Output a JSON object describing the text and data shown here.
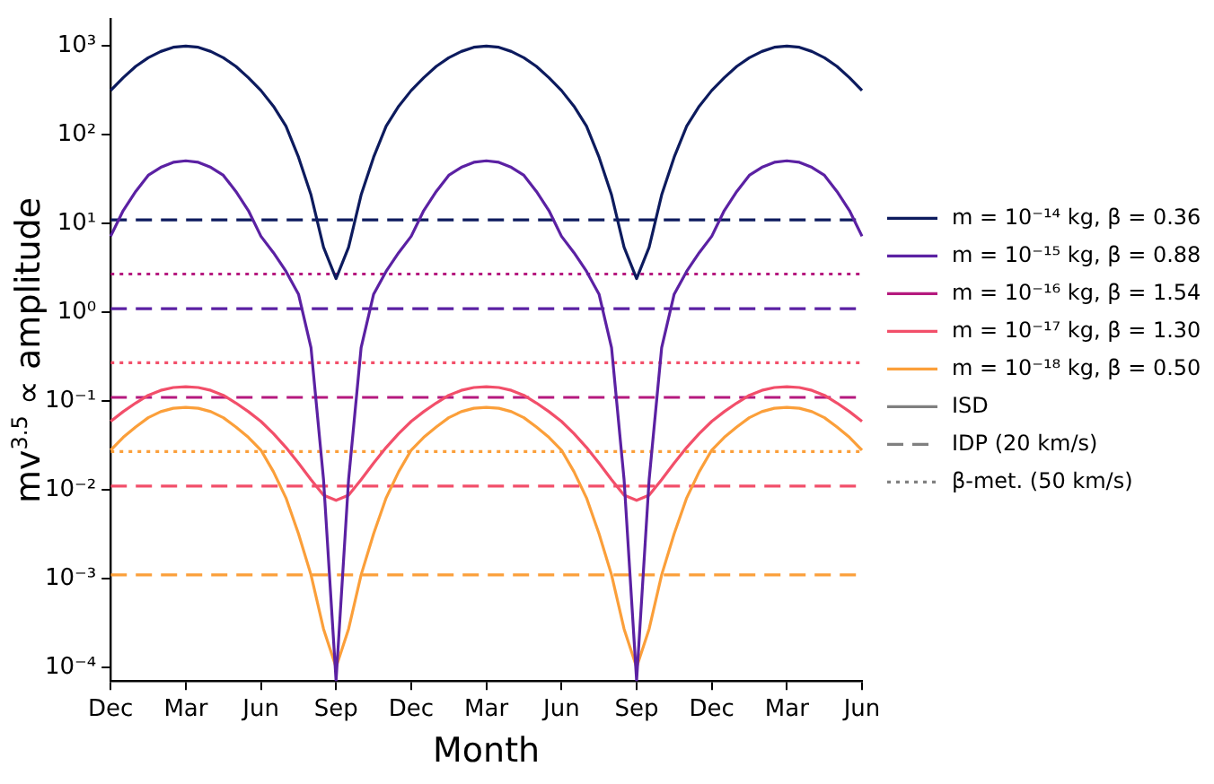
{
  "chart_data": {
    "type": "line",
    "xlabel": "Month",
    "ylabel": "mv$^{3.5}$ ∝ amplitude",
    "categories": [
      "Dec",
      null,
      null,
      null,
      null,
      null,
      "Mar",
      null,
      null,
      null,
      null,
      null,
      "Jun",
      null,
      null,
      null,
      null,
      null,
      "Sep",
      null,
      null,
      null,
      null,
      null,
      "Dec",
      null,
      null,
      null,
      null,
      null,
      "Mar",
      null,
      null,
      null,
      null,
      null,
      "Jun",
      null,
      null,
      null,
      null,
      null,
      "Sep",
      null,
      null,
      null,
      null,
      null,
      "Dec",
      null,
      null,
      null,
      null,
      null,
      "Mar",
      null,
      null,
      null,
      null,
      null,
      "Jun"
    ],
    "log": true,
    "ylim": [
      7e-05,
      2000
    ],
    "yticks": [
      {
        "value": 0.0001,
        "label": "10⁻⁴"
      },
      {
        "value": 0.001,
        "label": "10⁻³"
      },
      {
        "value": 0.01,
        "label": "10⁻²"
      },
      {
        "value": 0.1,
        "label": "10⁻¹"
      },
      {
        "value": 1,
        "label": "10⁰"
      },
      {
        "value": 10,
        "label": "10¹"
      },
      {
        "value": 100,
        "label": "10²"
      },
      {
        "value": 1000,
        "label": "10³"
      }
    ],
    "marker": "none",
    "legend": "right",
    "series": [
      {
        "name": "m = 10⁻¹⁴ kg, β = 0.36",
        "color": "#0d1b5e",
        "line_style": "solid",
        "values": [
          316,
          440,
          590,
          740,
          870,
          970,
          1000,
          970,
          870,
          740,
          590,
          440,
          316,
          210,
          125,
          56,
          21,
          5.4,
          2.4,
          5.4,
          21,
          56,
          125,
          210,
          316,
          440,
          590,
          740,
          870,
          970,
          1000,
          970,
          870,
          740,
          590,
          440,
          316,
          210,
          125,
          56,
          21,
          5.4,
          2.4,
          5.4,
          21,
          56,
          125,
          210,
          316,
          440,
          590,
          740,
          870,
          970,
          1000,
          970,
          870,
          740,
          590,
          440,
          316
        ]
      },
      {
        "name": "m = 10⁻¹⁵ kg, β = 0.88",
        "color": "#5b21a3",
        "line_style": "solid",
        "values": [
          7.2,
          14,
          23,
          35,
          43,
          49,
          51,
          49,
          43,
          35,
          23,
          14,
          7.2,
          4.7,
          2.9,
          1.6,
          0.4,
          0.013,
          7.1e-05,
          0.013,
          0.4,
          1.6,
          2.9,
          4.7,
          7.2,
          14,
          23,
          35,
          43,
          49,
          51,
          49,
          43,
          35,
          23,
          14,
          7.2,
          4.7,
          2.9,
          1.6,
          0.4,
          0.013,
          7.1e-05,
          0.013,
          0.4,
          1.6,
          2.9,
          4.7,
          7.2,
          14,
          23,
          35,
          43,
          49,
          51,
          49,
          43,
          35,
          23,
          14,
          7.2
        ]
      },
      {
        "name": "m = 10⁻¹⁶ kg, β = 1.54",
        "color": "#b5197e",
        "line_style": "solid",
        "values": [
          null,
          null,
          null,
          null,
          null,
          null,
          null,
          null,
          null,
          null,
          null,
          null,
          null,
          null,
          null,
          null,
          null,
          null,
          null,
          null,
          null,
          null,
          null,
          null,
          null,
          null,
          null,
          null,
          null,
          null,
          null,
          null,
          null,
          null,
          null,
          null,
          null,
          null,
          null,
          null,
          null,
          null,
          null,
          null,
          null,
          null,
          null,
          null,
          null,
          null,
          null,
          null,
          null,
          null,
          null,
          null,
          null,
          null,
          null,
          null,
          null
        ]
      },
      {
        "name": "m = 10⁻¹⁷ kg, β = 1.30",
        "color": "#f24f6a",
        "line_style": "solid",
        "values": [
          0.059,
          0.076,
          0.095,
          0.116,
          0.132,
          0.142,
          0.145,
          0.142,
          0.132,
          0.116,
          0.095,
          0.076,
          0.059,
          0.043,
          0.03,
          0.02,
          0.013,
          0.0087,
          0.0076,
          0.0087,
          0.013,
          0.02,
          0.03,
          0.043,
          0.059,
          0.076,
          0.095,
          0.116,
          0.132,
          0.142,
          0.145,
          0.142,
          0.132,
          0.116,
          0.095,
          0.076,
          0.059,
          0.043,
          0.03,
          0.02,
          0.013,
          0.0087,
          0.0076,
          0.0087,
          0.013,
          0.02,
          0.03,
          0.043,
          0.059,
          0.076,
          0.095,
          0.116,
          0.132,
          0.142,
          0.145,
          0.142,
          0.132,
          0.116,
          0.095,
          0.076,
          0.059
        ]
      },
      {
        "name": "m = 10⁻¹⁸ kg, β = 0.50",
        "color": "#fb9f3a",
        "line_style": "solid",
        "values": [
          0.028,
          0.039,
          0.051,
          0.065,
          0.076,
          0.083,
          0.085,
          0.083,
          0.076,
          0.065,
          0.051,
          0.039,
          0.028,
          0.016,
          0.0081,
          0.0032,
          0.0011,
          0.00027,
          0.0001,
          0.00027,
          0.0011,
          0.0032,
          0.0081,
          0.016,
          0.028,
          0.039,
          0.051,
          0.065,
          0.076,
          0.083,
          0.085,
          0.083,
          0.076,
          0.065,
          0.051,
          0.039,
          0.028,
          0.016,
          0.0081,
          0.0032,
          0.0011,
          0.00027,
          0.0001,
          0.00027,
          0.0011,
          0.0032,
          0.0081,
          0.016,
          0.028,
          0.039,
          0.051,
          0.065,
          0.076,
          0.083,
          0.085,
          0.083,
          0.076,
          0.065,
          0.051,
          0.039,
          0.028
        ]
      },
      {
        "name": "ISD",
        "color": "#808080",
        "line_style": "solid",
        "values": [
          null,
          null,
          null,
          null,
          null,
          null,
          null,
          null,
          null,
          null,
          null,
          null,
          null,
          null,
          null,
          null,
          null,
          null,
          null,
          null,
          null,
          null,
          null,
          null,
          null,
          null,
          null,
          null,
          null,
          null,
          null,
          null,
          null,
          null,
          null,
          null,
          null,
          null,
          null,
          null,
          null,
          null,
          null,
          null,
          null,
          null,
          null,
          null,
          null,
          null,
          null,
          null,
          null,
          null,
          null,
          null,
          null,
          null,
          null,
          null,
          null
        ]
      },
      {
        "name": "IDP (20 km/s)",
        "color": "#808080",
        "line_style": "dashed",
        "values": [
          null,
          null,
          null,
          null,
          null,
          null,
          null,
          null,
          null,
          null,
          null,
          null,
          null,
          null,
          null,
          null,
          null,
          null,
          null,
          null,
          null,
          null,
          null,
          null,
          null,
          null,
          null,
          null,
          null,
          null,
          null,
          null,
          null,
          null,
          null,
          null,
          null,
          null,
          null,
          null,
          null,
          null,
          null,
          null,
          null,
          null,
          null,
          null,
          null,
          null,
          null,
          null,
          null,
          null,
          null,
          null,
          null,
          null,
          null,
          null,
          null
        ]
      },
      {
        "name": "β-met. (50 km/s)",
        "color": "#808080",
        "line_style": "dotted",
        "values": [
          null,
          null,
          null,
          null,
          null,
          null,
          null,
          null,
          null,
          null,
          null,
          null,
          null,
          null,
          null,
          null,
          null,
          null,
          null,
          null,
          null,
          null,
          null,
          null,
          null,
          null,
          null,
          null,
          null,
          null,
          null,
          null,
          null,
          null,
          null,
          null,
          null,
          null,
          null,
          null,
          null,
          null,
          null,
          null,
          null,
          null,
          null,
          null,
          null,
          null,
          null,
          null,
          null,
          null,
          null,
          null,
          null,
          null,
          null,
          null,
          null
        ]
      }
    ],
    "ref_lines": [
      {
        "axis": "y",
        "value": 11,
        "color": "#0d1b5e",
        "line_style": "dashed"
      },
      {
        "axis": "y",
        "value": 1.1,
        "color": "#5b21a3",
        "line_style": "dashed"
      },
      {
        "axis": "y",
        "value": 0.11,
        "color": "#b5197e",
        "line_style": "dashed"
      },
      {
        "axis": "y",
        "value": 0.011,
        "color": "#f24f6a",
        "line_style": "dashed"
      },
      {
        "axis": "y",
        "value": 0.0011,
        "color": "#fb9f3a",
        "line_style": "dashed"
      },
      {
        "axis": "y",
        "value": 2.7,
        "color": "#b5197e",
        "line_style": "dotted"
      },
      {
        "axis": "y",
        "value": 0.27,
        "color": "#f24f6a",
        "line_style": "dotted"
      },
      {
        "axis": "y",
        "value": 0.027,
        "color": "#fb9f3a",
        "line_style": "dotted"
      }
    ]
  }
}
